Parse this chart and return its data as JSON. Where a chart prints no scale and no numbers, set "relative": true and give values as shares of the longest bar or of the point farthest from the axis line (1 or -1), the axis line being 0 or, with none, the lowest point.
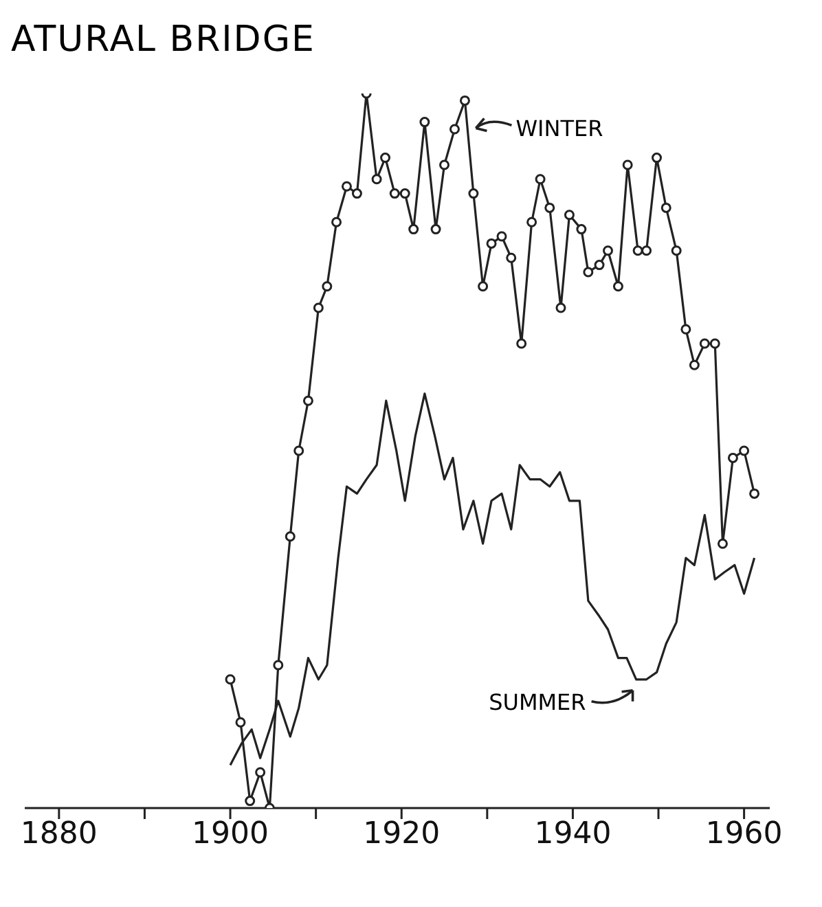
{
  "chart_data": {
    "type": "line",
    "title": "ATURAL BRIDGE",
    "relative": true,
    "xlim": [
      1876,
      1963
    ],
    "xticks": [
      1880,
      {
        "value": 1890,
        "label": null
      },
      1900,
      {
        "value": 1910,
        "label": null
      },
      1920,
      {
        "value": 1930,
        "label": null
      },
      1940,
      {
        "value": 1950,
        "label": null
      },
      1960
    ],
    "line_style": "solid",
    "annotations": [
      {
        "text": "WINTER",
        "x": 1927.4,
        "y": 0.99
      },
      {
        "text": "SUMMER",
        "x": 1948.6,
        "y": 0.18
      }
    ],
    "series": [
      {
        "color": "#222222",
        "marker": "circle",
        "x": [
          1900.0,
          1901.2,
          1902.3,
          1903.5,
          1904.6,
          1905.6,
          1907.0,
          1908.0,
          1909.1,
          1910.3,
          1911.3,
          1912.4,
          1913.6,
          1914.8,
          1915.9,
          1917.1,
          1918.1,
          1919.2,
          1920.4,
          1921.4,
          1922.7,
          1924.0,
          1925.0,
          1926.2,
          1927.4,
          1928.4,
          1929.5,
          1930.5,
          1931.7,
          1932.8,
          1934.0,
          1935.2,
          1936.2,
          1937.3,
          1938.6,
          1939.6,
          1941.0,
          1941.8,
          1943.1,
          1944.1,
          1945.3,
          1946.4,
          1947.6,
          1948.6,
          1949.8,
          1950.9,
          1952.1,
          1953.2,
          1954.2,
          1955.4,
          1956.6,
          1957.5,
          1958.7,
          1960.0,
          1961.2
        ],
        "values": [
          0.18,
          0.12,
          0.01,
          0.05,
          0,
          0.2,
          0.38,
          0.5,
          0.57,
          0.7,
          0.73,
          0.82,
          0.87,
          0.86,
          1,
          0.88,
          0.91,
          0.86,
          0.86,
          0.81,
          0.96,
          0.81,
          0.9,
          0.95,
          0.99,
          0.86,
          0.73,
          0.79,
          0.8,
          0.77,
          0.65,
          0.82,
          0.88,
          0.84,
          0.7,
          0.83,
          0.81,
          0.75,
          0.76,
          0.78,
          0.73,
          0.9,
          0.78,
          0.78,
          0.91,
          0.84,
          0.78,
          0.67,
          0.62,
          0.65,
          0.65,
          0.37,
          0.49,
          0.5,
          0.44
        ]
      },
      {
        "color": "#222222",
        "marker": "none",
        "x": [
          1900.0,
          1901.3,
          1902.5,
          1903.5,
          1904.6,
          1905.6,
          1907.0,
          1908.0,
          1909.1,
          1910.3,
          1911.3,
          1912.6,
          1913.6,
          1914.8,
          1915.9,
          1917.1,
          1918.2,
          1919.4,
          1920.4,
          1921.6,
          1922.7,
          1923.9,
          1925.0,
          1926.0,
          1927.2,
          1928.4,
          1929.5,
          1930.5,
          1931.7,
          1932.8,
          1933.8,
          1935.0,
          1936.2,
          1937.3,
          1938.5,
          1939.6,
          1940.8,
          1941.8,
          1943.0,
          1944.1,
          1945.3,
          1946.3,
          1947.4,
          1948.6,
          1949.8,
          1950.9,
          1952.1,
          1953.2,
          1954.2,
          1955.4,
          1956.6,
          1957.7,
          1958.9,
          1960.0,
          1961.2
        ],
        "values": [
          0.06,
          0.09,
          0.11,
          0.07,
          0.11,
          0.15,
          0.1,
          0.14,
          0.21,
          0.18,
          0.2,
          0.35,
          0.45,
          0.44,
          0.46,
          0.48,
          0.57,
          0.5,
          0.43,
          0.52,
          0.58,
          0.52,
          0.46,
          0.49,
          0.39,
          0.43,
          0.37,
          0.43,
          0.44,
          0.39,
          0.48,
          0.46,
          0.46,
          0.45,
          0.47,
          0.43,
          0.43,
          0.29,
          0.27,
          0.25,
          0.21,
          0.21,
          0.18,
          0.18,
          0.19,
          0.23,
          0.26,
          0.35,
          0.34,
          0.41,
          0.32,
          0.33,
          0.34,
          0.3,
          0.35
        ]
      }
    ]
  }
}
